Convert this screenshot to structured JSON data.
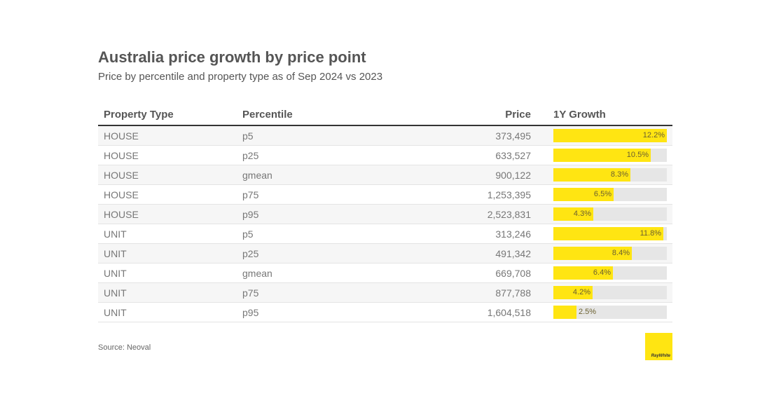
{
  "header": {
    "title": "Australia price growth by price point",
    "subtitle": "Price by percentile and property type as of Sep 2024 vs 2023"
  },
  "table": {
    "columns": [
      "Property Type",
      "Percentile",
      "Price",
      "1Y Growth"
    ],
    "rows": [
      {
        "type": "HOUSE",
        "percentile": "p5",
        "price": "373,495",
        "growth": 12.2,
        "growth_label": "12.2%"
      },
      {
        "type": "HOUSE",
        "percentile": "p25",
        "price": "633,527",
        "growth": 10.5,
        "growth_label": "10.5%"
      },
      {
        "type": "HOUSE",
        "percentile": "gmean",
        "price": "900,122",
        "growth": 8.3,
        "growth_label": "8.3%"
      },
      {
        "type": "HOUSE",
        "percentile": "p75",
        "price": "1,253,395",
        "growth": 6.5,
        "growth_label": "6.5%"
      },
      {
        "type": "HOUSE",
        "percentile": "p95",
        "price": "2,523,831",
        "growth": 4.3,
        "growth_label": "4.3%"
      },
      {
        "type": "UNIT",
        "percentile": "p5",
        "price": "313,246",
        "growth": 11.8,
        "growth_label": "11.8%"
      },
      {
        "type": "UNIT",
        "percentile": "p25",
        "price": "491,342",
        "growth": 8.4,
        "growth_label": "8.4%"
      },
      {
        "type": "UNIT",
        "percentile": "gmean",
        "price": "669,708",
        "growth": 6.4,
        "growth_label": "6.4%"
      },
      {
        "type": "UNIT",
        "percentile": "p75",
        "price": "877,788",
        "growth": 4.2,
        "growth_label": "4.2%"
      },
      {
        "type": "UNIT",
        "percentile": "p95",
        "price": "1,604,518",
        "growth": 2.5,
        "growth_label": "2.5%"
      }
    ]
  },
  "chart_data": {
    "type": "table",
    "title": "Australia price growth by price point",
    "subtitle": "Price by percentile and property type as of Sep 2024 vs 2023",
    "columns": [
      "Property Type",
      "Percentile",
      "Price",
      "1Y Growth"
    ],
    "categories": [
      "HOUSE p5",
      "HOUSE p25",
      "HOUSE gmean",
      "HOUSE p75",
      "HOUSE p95",
      "UNIT p5",
      "UNIT p25",
      "UNIT gmean",
      "UNIT p75",
      "UNIT p95"
    ],
    "series": [
      {
        "name": "Price",
        "values": [
          373495,
          633527,
          900122,
          1253395,
          2523831,
          313246,
          491342,
          669708,
          877788,
          1604518
        ]
      },
      {
        "name": "1Y Growth",
        "values": [
          12.2,
          10.5,
          8.3,
          6.5,
          4.3,
          11.8,
          8.4,
          6.4,
          4.2,
          2.5
        ]
      }
    ],
    "bar_max": 12.2
  },
  "footer": {
    "source": "Source: Neoval",
    "logo_text": "RayWhite"
  },
  "colors": {
    "bar_fill": "#ffe512",
    "bar_track": "#e6e6e6",
    "text": "#555555"
  }
}
